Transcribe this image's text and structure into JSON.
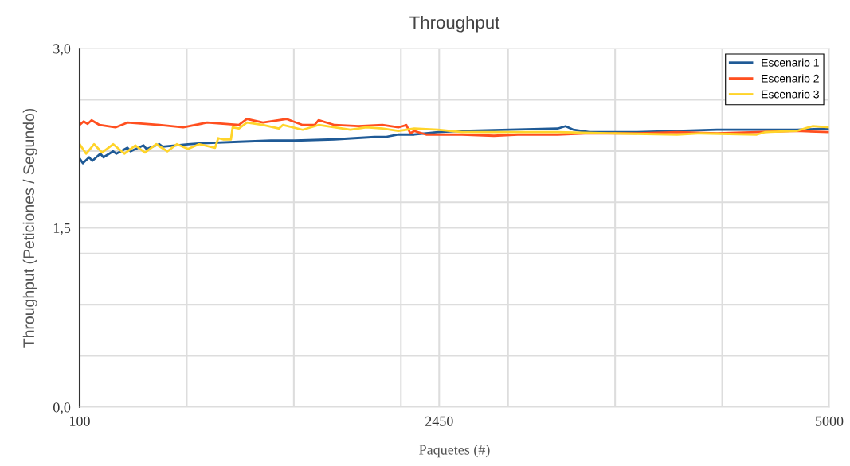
{
  "chart_data": {
    "type": "line",
    "title": "Throughput",
    "xlabel": "Paquetes (#)",
    "ylabel": "Throughput (Peticiones / Segundo)",
    "xlim": [
      100,
      5000
    ],
    "ylim": [
      0,
      3.0
    ],
    "xticks": [
      100,
      {
        "value": 800,
        "label": null
      },
      {
        "value": 1500,
        "label": null
      },
      {
        "value": 2200,
        "label": null
      },
      2450,
      {
        "value": 2900,
        "label": null
      },
      {
        "value": 3600,
        "label": null
      },
      {
        "value": 4300,
        "label": null
      },
      5000
    ],
    "yticks": [
      {
        "value": 0,
        "label": "0,0"
      },
      {
        "value": 0.4286,
        "label": null
      },
      {
        "value": 0.8571,
        "label": null
      },
      {
        "value": 1.2857,
        "label": null
      },
      {
        "value": 1.5,
        "label": "1,5"
      },
      {
        "value": 1.7143,
        "label": null
      },
      {
        "value": 2.1429,
        "label": null
      },
      {
        "value": 2.5714,
        "label": null
      },
      {
        "value": 3.0,
        "label": "3,0"
      }
    ],
    "grid": true,
    "legend": "top right",
    "marker": "none",
    "line_style": "solid",
    "series": [
      {
        "name": "Escenario 1",
        "color": "#1f5a96",
        "x": [
          100,
          121,
          162,
          183,
          235,
          256,
          319,
          340,
          412,
          433,
          517,
          537,
          621,
          642,
          808,
          933,
          1141,
          1350,
          1506,
          1766,
          2027,
          2099,
          2183,
          2287,
          2443,
          2599,
          2912,
          3224,
          3276,
          3328,
          3432,
          3599,
          3745,
          4005,
          4266,
          4526,
          4786,
          5000
        ],
        "values": [
          2.08,
          2.04,
          2.09,
          2.06,
          2.12,
          2.09,
          2.14,
          2.12,
          2.17,
          2.14,
          2.19,
          2.16,
          2.2,
          2.18,
          2.2,
          2.21,
          2.22,
          2.23,
          2.23,
          2.24,
          2.26,
          2.26,
          2.28,
          2.28,
          2.3,
          2.31,
          2.32,
          2.33,
          2.35,
          2.32,
          2.3,
          2.3,
          2.3,
          2.31,
          2.32,
          2.32,
          2.32,
          2.33
        ]
      },
      {
        "name": "Escenario 2",
        "color": "#ff4f1f",
        "x": [
          100,
          126,
          152,
          178,
          230,
          334,
          412,
          621,
          777,
          933,
          1141,
          1193,
          1298,
          1402,
          1454,
          1558,
          1636,
          1662,
          1766,
          1922,
          2079,
          2183,
          2235,
          2261,
          2287,
          2365,
          2443,
          2599,
          2808,
          2964,
          3224,
          3432,
          3599,
          3745,
          4005,
          4266,
          4526,
          4786,
          5000
        ],
        "values": [
          2.36,
          2.39,
          2.37,
          2.4,
          2.36,
          2.34,
          2.38,
          2.36,
          2.34,
          2.38,
          2.36,
          2.41,
          2.38,
          2.4,
          2.41,
          2.36,
          2.36,
          2.4,
          2.36,
          2.35,
          2.36,
          2.34,
          2.36,
          2.29,
          2.31,
          2.28,
          2.28,
          2.28,
          2.27,
          2.28,
          2.28,
          2.29,
          2.29,
          2.29,
          2.3,
          2.29,
          2.3,
          2.31,
          2.3
        ]
      },
      {
        "name": "Escenario 3",
        "color": "#ffd42a",
        "x": [
          100,
          142,
          194,
          246,
          319,
          392,
          464,
          527,
          600,
          673,
          735,
          808,
          881,
          985,
          1006,
          1037,
          1089,
          1100,
          1141,
          1193,
          1298,
          1402,
          1428,
          1558,
          1662,
          1766,
          1870,
          1974,
          2079,
          2183,
          2287,
          2443,
          2599,
          2912,
          3224,
          3599,
          4005,
          4161,
          4526,
          4578,
          4786,
          4890,
          5000
        ],
        "values": [
          2.2,
          2.12,
          2.2,
          2.13,
          2.2,
          2.12,
          2.19,
          2.13,
          2.2,
          2.14,
          2.2,
          2.16,
          2.2,
          2.17,
          2.25,
          2.24,
          2.24,
          2.34,
          2.33,
          2.38,
          2.36,
          2.33,
          2.36,
          2.32,
          2.36,
          2.34,
          2.32,
          2.34,
          2.33,
          2.31,
          2.33,
          2.32,
          2.3,
          2.3,
          2.3,
          2.29,
          2.28,
          2.29,
          2.28,
          2.3,
          2.31,
          2.35,
          2.34
        ]
      }
    ]
  }
}
